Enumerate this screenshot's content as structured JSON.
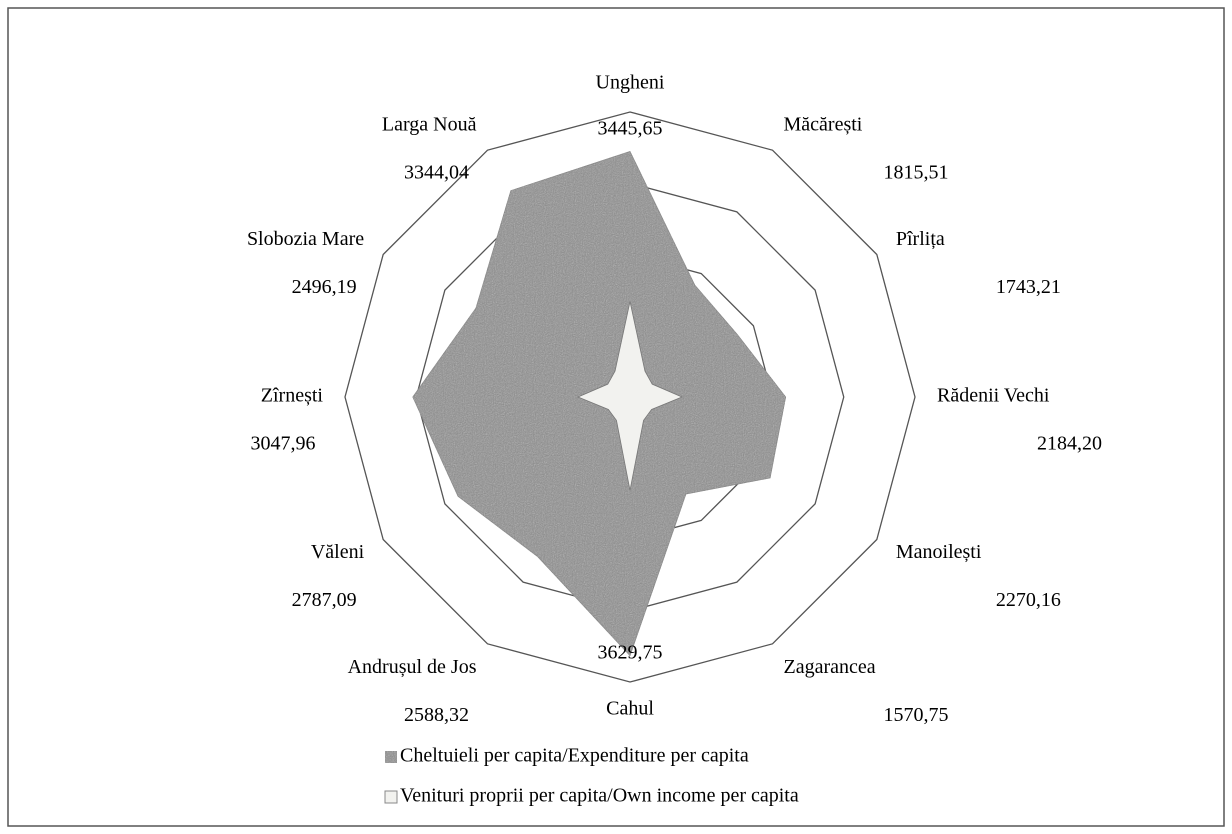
{
  "chart_data": {
    "type": "radar",
    "categories": [
      "Ungheni",
      "Măcărești",
      "Pîrlița",
      "Rădenii Vechi",
      "Manoilești",
      "Zagarancea",
      "Cahul",
      "Andrușul de Jos",
      "Văleni",
      "Zîrnești",
      "Slobozia Mare",
      "Larga Nouă"
    ],
    "series": [
      {
        "name": "Cheltuieli per capita/Expenditure per capita",
        "color": "#8c8c8c",
        "values": [
          3445.65,
          1815.51,
          1743.21,
          2184.2,
          2270.16,
          1570.75,
          3629.75,
          2588.32,
          2787.09,
          3047.96,
          2496.19,
          3344.04
        ],
        "value_labels": [
          "3445,65",
          "1815,51",
          "1743,21",
          "2184,20",
          "2270,16",
          "1570,75",
          "3629,75",
          "2588,32",
          "2787,09",
          "3047,96",
          "2496,19",
          "3344,04"
        ]
      },
      {
        "name": "Venituri proprii per capita/Own income per capita",
        "color": "#f2f2ef",
        "values": [
          1340,
          420,
          360,
          730,
          350,
          380,
          1310,
          380,
          350,
          730,
          360,
          420
        ]
      }
    ],
    "ylim": [
      0,
      4000
    ],
    "yticks": [
      0,
      1000,
      2000,
      3000,
      4000
    ],
    "grid": true
  }
}
